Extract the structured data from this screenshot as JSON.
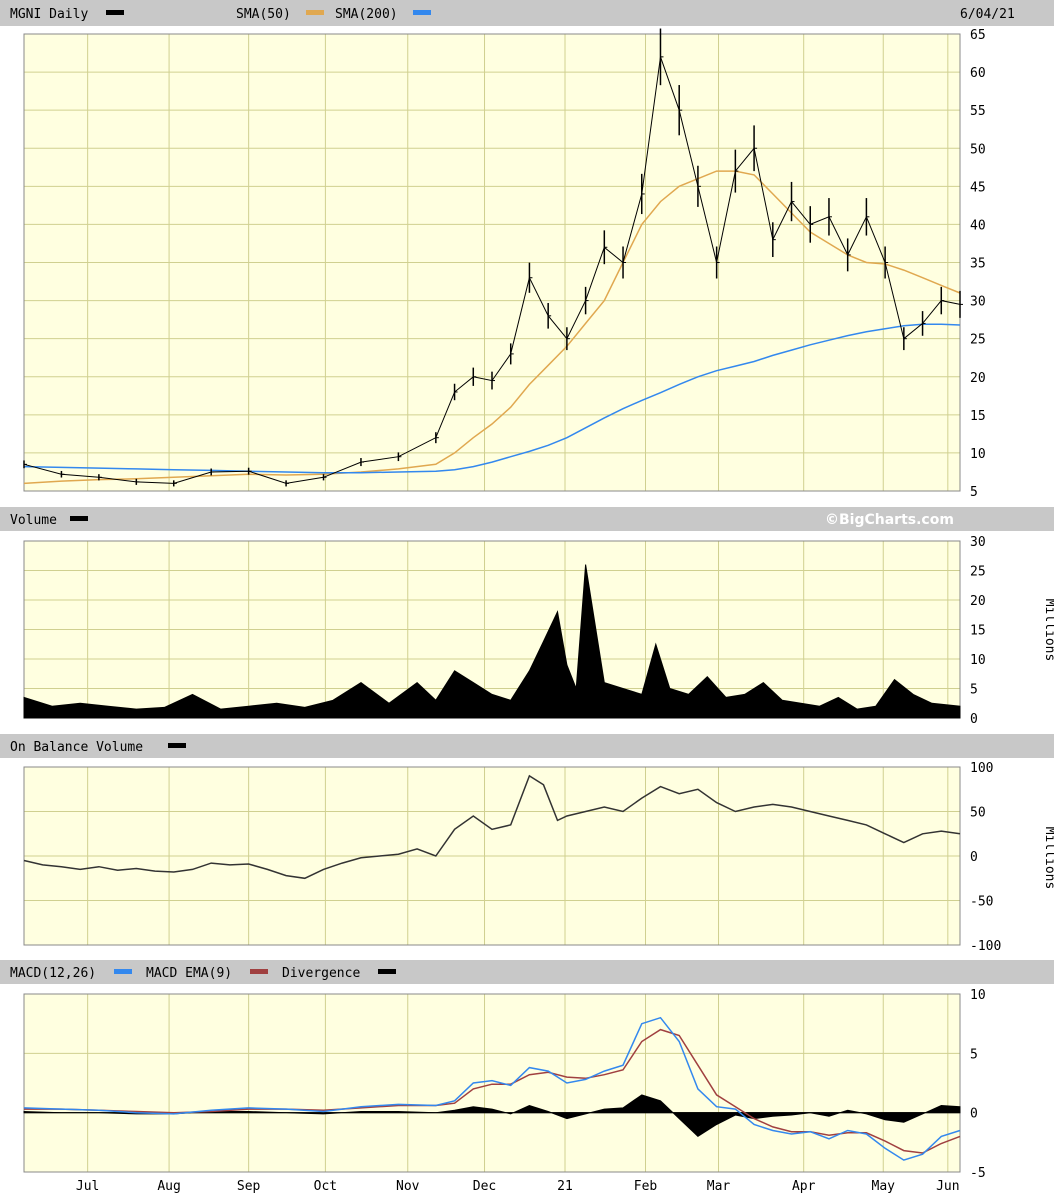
{
  "header": {
    "symbol_label": "MGNI Daily",
    "sma50_label": "SMA(50)",
    "sma200_label": "SMA(200)",
    "date_label": "6/04/21"
  },
  "brand": "©BigCharts.com",
  "colors": {
    "panel_bg": "#ffffe0",
    "grid": "#d0d090",
    "header_bg": "#c8c8c8",
    "price": "#000000",
    "sma50": "#e0a850",
    "sma200": "#3388ee",
    "macd": "#3388ee",
    "macd_ema": "#a04040",
    "divergence": "#000000"
  },
  "x_axis": {
    "ticks": [
      {
        "label": "Jul",
        "t": 0.068
      },
      {
        "label": "Aug",
        "t": 0.155
      },
      {
        "label": "Sep",
        "t": 0.24
      },
      {
        "label": "Oct",
        "t": 0.322
      },
      {
        "label": "Nov",
        "t": 0.41
      },
      {
        "label": "Dec",
        "t": 0.492
      },
      {
        "label": "21",
        "t": 0.578
      },
      {
        "label": "Feb",
        "t": 0.664
      },
      {
        "label": "Mar",
        "t": 0.742
      },
      {
        "label": "Apr",
        "t": 0.833
      },
      {
        "label": "May",
        "t": 0.918
      },
      {
        "label": "Jun",
        "t": 0.987
      }
    ]
  },
  "chart_data": [
    {
      "type": "line",
      "title": "MGNI Daily",
      "ylim": [
        5,
        65
      ],
      "yticks": [
        5,
        10,
        15,
        20,
        25,
        30,
        35,
        40,
        45,
        50,
        55,
        60,
        65
      ],
      "x": [
        0,
        0.04,
        0.08,
        0.12,
        0.16,
        0.2,
        0.24,
        0.28,
        0.32,
        0.36,
        0.4,
        0.44,
        0.46,
        0.48,
        0.5,
        0.52,
        0.54,
        0.56,
        0.58,
        0.6,
        0.62,
        0.64,
        0.66,
        0.68,
        0.7,
        0.72,
        0.74,
        0.76,
        0.78,
        0.8,
        0.82,
        0.84,
        0.86,
        0.88,
        0.9,
        0.92,
        0.94,
        0.96,
        0.98,
        1.0
      ],
      "series": [
        {
          "name": "MGNI Daily",
          "values": [
            8.5,
            7.2,
            6.8,
            6.2,
            6.0,
            7.5,
            7.6,
            6.0,
            6.8,
            8.8,
            9.5,
            12.0,
            18.0,
            20.0,
            19.5,
            23.0,
            33.0,
            28.0,
            25.0,
            30.0,
            37.0,
            35.0,
            44.0,
            62.0,
            55.0,
            45.0,
            35.0,
            47.0,
            50.0,
            38.0,
            43.0,
            40.0,
            41.0,
            36.0,
            41.0,
            35.0,
            25.0,
            27.0,
            30.0,
            29.5
          ]
        },
        {
          "name": "SMA(50)",
          "values": [
            6.0,
            6.3,
            6.5,
            6.6,
            6.8,
            7.0,
            7.2,
            7.1,
            7.2,
            7.5,
            7.9,
            8.5,
            10.0,
            12.0,
            13.8,
            16.0,
            19.0,
            21.5,
            24.0,
            27.0,
            30.0,
            35.0,
            40.0,
            43.0,
            45.0,
            46.0,
            47.0,
            47.0,
            46.5,
            44.0,
            41.5,
            39.0,
            37.5,
            36.0,
            35.0,
            34.8,
            34.0,
            33.0,
            32.0,
            31.0
          ]
        },
        {
          "name": "SMA(200)",
          "values": [
            8.2,
            8.1,
            8.0,
            7.9,
            7.8,
            7.7,
            7.6,
            7.5,
            7.4,
            7.4,
            7.5,
            7.6,
            7.8,
            8.2,
            8.8,
            9.5,
            10.2,
            11.0,
            12.0,
            13.3,
            14.6,
            15.8,
            16.9,
            17.9,
            19.0,
            20.0,
            20.8,
            21.4,
            22.0,
            22.8,
            23.5,
            24.2,
            24.8,
            25.4,
            25.9,
            26.3,
            26.7,
            26.9,
            26.9,
            26.8
          ]
        }
      ]
    },
    {
      "type": "area",
      "title": "Volume",
      "ylabel": "Millions",
      "ylim": [
        0,
        30
      ],
      "yticks": [
        0,
        5,
        10,
        15,
        20,
        25,
        30
      ],
      "x": [
        0,
        0.03,
        0.06,
        0.09,
        0.12,
        0.15,
        0.18,
        0.21,
        0.24,
        0.27,
        0.3,
        0.33,
        0.36,
        0.39,
        0.42,
        0.44,
        0.46,
        0.48,
        0.5,
        0.52,
        0.54,
        0.555,
        0.57,
        0.58,
        0.59,
        0.6,
        0.62,
        0.64,
        0.66,
        0.675,
        0.69,
        0.71,
        0.73,
        0.75,
        0.77,
        0.79,
        0.81,
        0.83,
        0.85,
        0.87,
        0.89,
        0.91,
        0.93,
        0.95,
        0.97,
        1.0
      ],
      "series": [
        {
          "name": "Volume",
          "values": [
            3.5,
            2.0,
            2.5,
            2.0,
            1.5,
            1.8,
            4.0,
            1.5,
            2.0,
            2.5,
            1.8,
            3.0,
            6.0,
            2.5,
            6.0,
            3.0,
            8.0,
            6.0,
            4.0,
            3.0,
            8.0,
            13.0,
            18.0,
            9.0,
            5.0,
            26.0,
            6.0,
            5.0,
            4.0,
            12.5,
            5.0,
            4.0,
            7.0,
            3.5,
            4.0,
            6.0,
            3.0,
            2.5,
            2.0,
            3.5,
            1.5,
            2.0,
            6.5,
            4.0,
            2.5,
            2.0
          ]
        }
      ]
    },
    {
      "type": "line",
      "title": "On Balance Volume",
      "ylabel": "Millions",
      "ylim": [
        -100,
        100
      ],
      "yticks": [
        -100,
        -50,
        0,
        50,
        100
      ],
      "x": [
        0,
        0.02,
        0.04,
        0.06,
        0.08,
        0.1,
        0.12,
        0.14,
        0.16,
        0.18,
        0.2,
        0.22,
        0.24,
        0.26,
        0.28,
        0.3,
        0.32,
        0.34,
        0.36,
        0.38,
        0.4,
        0.42,
        0.44,
        0.46,
        0.48,
        0.5,
        0.52,
        0.54,
        0.555,
        0.57,
        0.58,
        0.6,
        0.62,
        0.64,
        0.66,
        0.68,
        0.7,
        0.72,
        0.74,
        0.76,
        0.78,
        0.8,
        0.82,
        0.84,
        0.86,
        0.88,
        0.9,
        0.92,
        0.94,
        0.96,
        0.98,
        1.0
      ],
      "series": [
        {
          "name": "On Balance Volume",
          "values": [
            -5,
            -10,
            -12,
            -15,
            -12,
            -16,
            -14,
            -17,
            -18,
            -15,
            -8,
            -10,
            -9,
            -15,
            -22,
            -25,
            -15,
            -8,
            -2,
            0,
            2,
            8,
            0,
            30,
            45,
            30,
            35,
            90,
            80,
            40,
            45,
            50,
            55,
            50,
            65,
            78,
            70,
            75,
            60,
            50,
            55,
            58,
            55,
            50,
            45,
            40,
            35,
            25,
            15,
            25,
            28,
            25
          ]
        }
      ]
    },
    {
      "type": "line",
      "title": "MACD(12,26)",
      "ylim": [
        -5,
        10
      ],
      "yticks": [
        -5,
        0,
        5,
        10
      ],
      "x": [
        0,
        0.04,
        0.08,
        0.12,
        0.16,
        0.2,
        0.24,
        0.28,
        0.32,
        0.36,
        0.4,
        0.44,
        0.46,
        0.48,
        0.5,
        0.52,
        0.54,
        0.56,
        0.58,
        0.6,
        0.62,
        0.64,
        0.66,
        0.68,
        0.7,
        0.72,
        0.74,
        0.76,
        0.78,
        0.8,
        0.82,
        0.84,
        0.86,
        0.88,
        0.9,
        0.92,
        0.94,
        0.96,
        0.98,
        1.0
      ],
      "series": [
        {
          "name": "MACD(12,26)",
          "values": [
            0.4,
            0.3,
            0.2,
            0.0,
            -0.1,
            0.2,
            0.4,
            0.3,
            0.1,
            0.5,
            0.7,
            0.6,
            1.0,
            2.5,
            2.7,
            2.3,
            3.8,
            3.5,
            2.5,
            2.8,
            3.5,
            4.0,
            7.5,
            8.0,
            6.0,
            2.0,
            0.5,
            0.3,
            -1.0,
            -1.5,
            -1.8,
            -1.6,
            -2.2,
            -1.5,
            -1.8,
            -3.0,
            -4.0,
            -3.5,
            -2.0,
            -1.5
          ]
        },
        {
          "name": "MACD EMA(9)",
          "values": [
            0.3,
            0.3,
            0.2,
            0.1,
            0.0,
            0.1,
            0.3,
            0.3,
            0.2,
            0.4,
            0.6,
            0.6,
            0.8,
            2.0,
            2.4,
            2.4,
            3.2,
            3.4,
            3.0,
            2.9,
            3.2,
            3.6,
            6.0,
            7.0,
            6.5,
            4.0,
            1.5,
            0.5,
            -0.5,
            -1.2,
            -1.6,
            -1.6,
            -1.9,
            -1.7,
            -1.7,
            -2.4,
            -3.2,
            -3.4,
            -2.6,
            -2.0
          ]
        },
        {
          "name": "Divergence",
          "values": [
            0.1,
            0.0,
            0.0,
            -0.1,
            -0.1,
            0.1,
            0.1,
            0.0,
            -0.1,
            0.1,
            0.1,
            0.0,
            0.2,
            0.5,
            0.3,
            -0.1,
            0.6,
            0.1,
            -0.5,
            -0.1,
            0.3,
            0.4,
            1.5,
            1.0,
            -0.5,
            -2.0,
            -1.0,
            -0.2,
            -0.5,
            -0.3,
            -0.2,
            0.0,
            -0.3,
            0.2,
            -0.1,
            -0.6,
            -0.8,
            -0.1,
            0.6,
            0.5
          ]
        }
      ]
    }
  ],
  "panels": {
    "volume_label": "Volume",
    "obv_label": "On Balance Volume",
    "macd_label": "MACD(12,26)",
    "macd_ema_label": "MACD EMA(9)",
    "divergence_label": "Divergence",
    "unit_millions": "Millions"
  }
}
